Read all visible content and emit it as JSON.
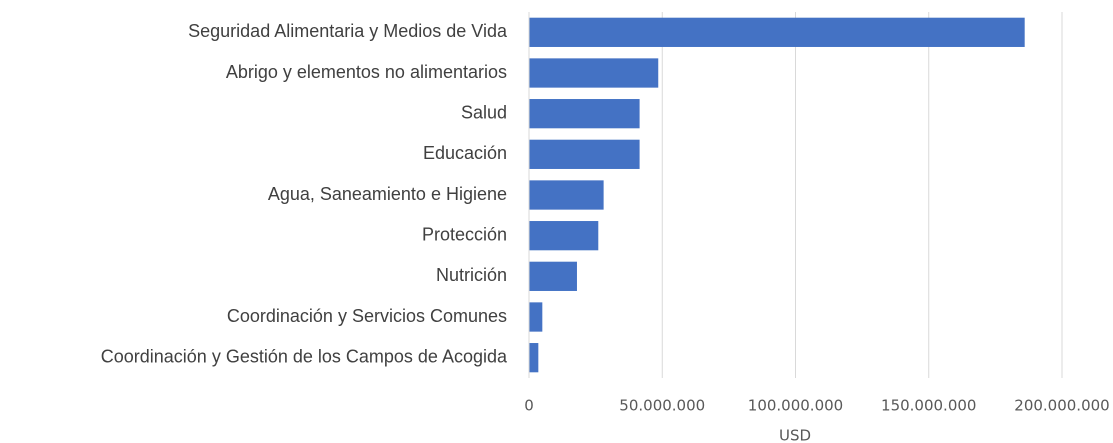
{
  "chart_data": {
    "type": "bar",
    "orientation": "horizontal",
    "x_label": "USD",
    "categories": [
      "Seguridad Alimentaria y Medios de Vida",
      "Abrigo y elementos no alimentarios",
      "Salud",
      "Educación",
      "Agua, Saneamiento e Higiene",
      "Protección",
      "Nutrición",
      "Coordinación y Servicios Comunes",
      "Coordinación y Gestión de los Campos de Acogida"
    ],
    "values": [
      186000000,
      48500000,
      41500000,
      41500000,
      28000000,
      26000000,
      18000000,
      5000000,
      3500000
    ],
    "color": "#4472c4",
    "xlim": [
      0,
      200000000
    ],
    "xticks": [
      0,
      {
        "value": 50000000,
        "label": "50.000.000"
      },
      {
        "value": 100000000,
        "label": "100.000.000"
      },
      {
        "value": 150000000,
        "label": "150.000.000"
      },
      {
        "value": 200000000,
        "label": "200.000.000"
      }
    ],
    "grid": true
  }
}
